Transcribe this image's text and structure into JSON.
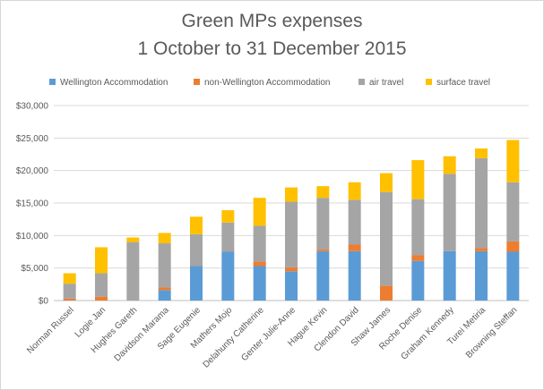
{
  "chart_data": {
    "type": "stacked-bar",
    "title": "Green MPs expenses",
    "subtitle": "1 October to 31 December 2015",
    "xlabel": "",
    "ylabel": "",
    "ylim": [
      0,
      30000
    ],
    "yticks": [
      0,
      5000,
      10000,
      15000,
      20000,
      25000,
      30000
    ],
    "ytick_labels": [
      "$0",
      "$5,000",
      "$10,000",
      "$15,000",
      "$20,000",
      "$25,000",
      "$30,000"
    ],
    "grid": true,
    "legend_position": "top",
    "categories": [
      "Norman Russel",
      "Logie Jan",
      "Hughes Gareth",
      "Davidson Marama",
      "Sage Eugenie",
      "Mathers Mojo",
      "Delahunty Catherine",
      "Genter Julie-Anne",
      "Hague Kevin",
      "Clendon David",
      "Shaw James",
      "Roche Denise",
      "Graham Kennedy",
      "Turei Metiria",
      "Browning Steffan"
    ],
    "series": [
      {
        "name": "Wellington Accommodation",
        "color": "#5b9bd5",
        "values": [
          0,
          0,
          0,
          1600,
          5300,
          7500,
          5300,
          4500,
          7600,
          7600,
          0,
          6100,
          7600,
          7600,
          7500
        ]
      },
      {
        "name": "non-Wellington Accommodation",
        "color": "#ed7d31",
        "values": [
          300,
          600,
          0,
          400,
          0,
          0,
          700,
          600,
          300,
          1000,
          2300,
          900,
          0,
          500,
          1600
        ]
      },
      {
        "name": "air travel",
        "color": "#a5a5a5",
        "values": [
          2300,
          3600,
          9000,
          6800,
          4900,
          4500,
          5500,
          10100,
          7900,
          6900,
          14400,
          8600,
          11900,
          13800,
          9100
        ]
      },
      {
        "name": "surface travel",
        "color": "#ffc000",
        "values": [
          1600,
          4000,
          700,
          1600,
          2700,
          1900,
          4300,
          2200,
          1800,
          2700,
          2900,
          6000,
          2700,
          1500,
          6500
        ]
      }
    ]
  }
}
